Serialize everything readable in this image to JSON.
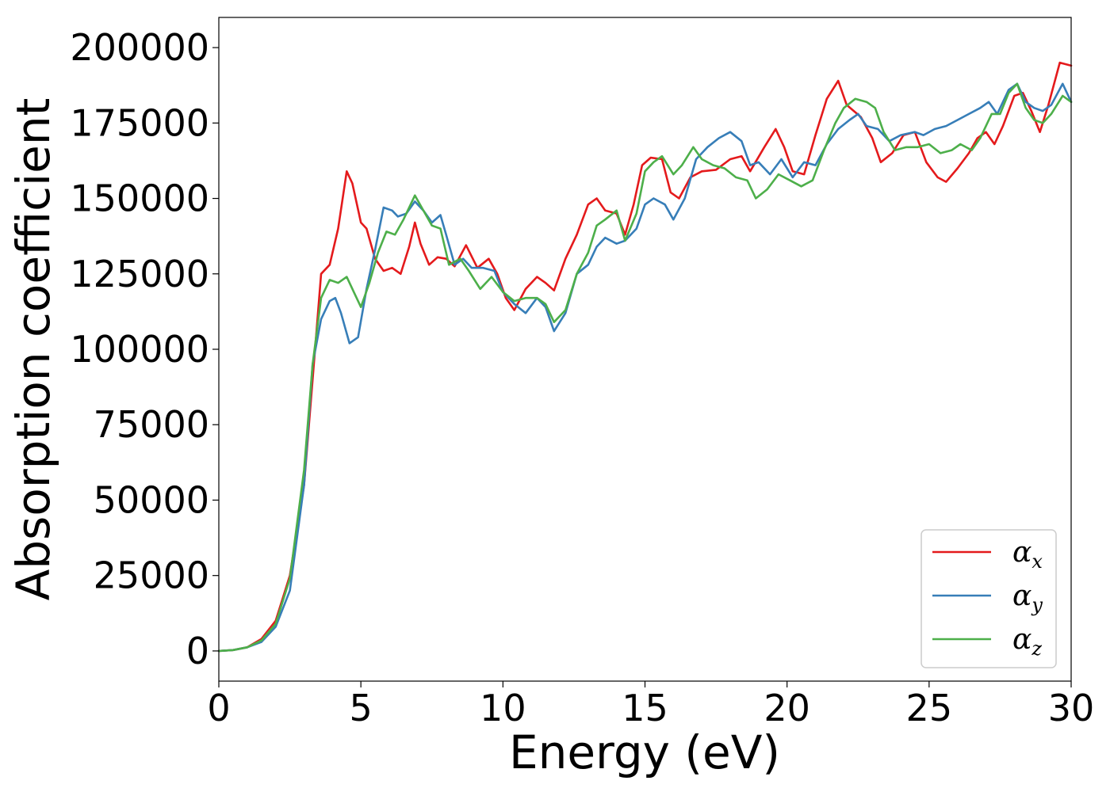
{
  "chart_data": {
    "type": "line",
    "title": "",
    "xlabel": "Energy (eV)",
    "ylabel": "Absorption coefficient",
    "xlim": [
      0,
      30
    ],
    "ylim": [
      -10000,
      210000
    ],
    "x_ticks": [
      0,
      5,
      10,
      15,
      20,
      25,
      30
    ],
    "y_ticks": [
      0,
      25000,
      50000,
      75000,
      100000,
      125000,
      150000,
      175000,
      200000
    ],
    "grid": false,
    "legend_position": "lower-right",
    "series": [
      {
        "name": "α_x",
        "label_base": "α",
        "label_sub": "x",
        "color": "#e41a1c",
        "points": [
          [
            0,
            0
          ],
          [
            0.5,
            300
          ],
          [
            1,
            1200
          ],
          [
            1.5,
            4000
          ],
          [
            2,
            10000
          ],
          [
            2.5,
            25000
          ],
          [
            3,
            55000
          ],
          [
            3.3,
            90000
          ],
          [
            3.6,
            125000
          ],
          [
            3.9,
            128000
          ],
          [
            4.2,
            140000
          ],
          [
            4.5,
            159000
          ],
          [
            4.7,
            155000
          ],
          [
            5,
            142000
          ],
          [
            5.2,
            140000
          ],
          [
            5.5,
            130000
          ],
          [
            5.8,
            126000
          ],
          [
            6.1,
            127000
          ],
          [
            6.4,
            125000
          ],
          [
            6.7,
            134000
          ],
          [
            6.9,
            142000
          ],
          [
            7.1,
            135000
          ],
          [
            7.4,
            128000
          ],
          [
            7.7,
            130500
          ],
          [
            8,
            130000
          ],
          [
            8.3,
            127500
          ],
          [
            8.7,
            134500
          ],
          [
            9.1,
            127000
          ],
          [
            9.5,
            130000
          ],
          [
            9.8,
            125000
          ],
          [
            10.1,
            117000
          ],
          [
            10.4,
            113000
          ],
          [
            10.8,
            120000
          ],
          [
            11.2,
            124000
          ],
          [
            11.5,
            122000
          ],
          [
            11.8,
            119500
          ],
          [
            12.2,
            130000
          ],
          [
            12.6,
            138000
          ],
          [
            13,
            148000
          ],
          [
            13.3,
            150000
          ],
          [
            13.6,
            146000
          ],
          [
            14,
            145000
          ],
          [
            14.3,
            138000
          ],
          [
            14.6,
            148000
          ],
          [
            14.9,
            161000
          ],
          [
            15.2,
            163500
          ],
          [
            15.6,
            163000
          ],
          [
            15.9,
            152000
          ],
          [
            16.2,
            150000
          ],
          [
            16.6,
            157000
          ],
          [
            17,
            159000
          ],
          [
            17.5,
            159500
          ],
          [
            18,
            163000
          ],
          [
            18.4,
            164000
          ],
          [
            18.7,
            159000
          ],
          [
            19.2,
            167000
          ],
          [
            19.6,
            173000
          ],
          [
            19.9,
            167000
          ],
          [
            20.2,
            159000
          ],
          [
            20.6,
            158000
          ],
          [
            21,
            171000
          ],
          [
            21.4,
            183000
          ],
          [
            21.8,
            189000
          ],
          [
            22.1,
            181000
          ],
          [
            22.6,
            177000
          ],
          [
            23,
            170000
          ],
          [
            23.3,
            162000
          ],
          [
            23.7,
            165000
          ],
          [
            24.1,
            171000
          ],
          [
            24.5,
            172000
          ],
          [
            24.9,
            162000
          ],
          [
            25.3,
            157000
          ],
          [
            25.6,
            155500
          ],
          [
            26,
            160000
          ],
          [
            26.4,
            165000
          ],
          [
            26.7,
            170000
          ],
          [
            27,
            172000
          ],
          [
            27.3,
            168000
          ],
          [
            27.6,
            174000
          ],
          [
            28,
            184000
          ],
          [
            28.3,
            185000
          ],
          [
            28.6,
            179000
          ],
          [
            28.9,
            172000
          ],
          [
            29.2,
            181000
          ],
          [
            29.6,
            195000
          ],
          [
            30,
            194000
          ]
        ]
      },
      {
        "name": "α_y",
        "label_base": "α",
        "label_sub": "y",
        "color": "#377eb8",
        "points": [
          [
            0,
            0
          ],
          [
            0.5,
            300
          ],
          [
            1,
            1200
          ],
          [
            1.5,
            3000
          ],
          [
            2,
            8000
          ],
          [
            2.5,
            20000
          ],
          [
            3,
            55000
          ],
          [
            3.3,
            95000
          ],
          [
            3.6,
            110000
          ],
          [
            3.9,
            116000
          ],
          [
            4.1,
            117000
          ],
          [
            4.3,
            112000
          ],
          [
            4.6,
            102000
          ],
          [
            4.9,
            104000
          ],
          [
            5.2,
            120000
          ],
          [
            5.5,
            133000
          ],
          [
            5.8,
            147000
          ],
          [
            6.1,
            146000
          ],
          [
            6.3,
            144000
          ],
          [
            6.6,
            145000
          ],
          [
            6.9,
            149000
          ],
          [
            7.2,
            146000
          ],
          [
            7.5,
            142000
          ],
          [
            7.8,
            144500
          ],
          [
            8,
            138000
          ],
          [
            8.3,
            128000
          ],
          [
            8.6,
            130000
          ],
          [
            8.9,
            127000
          ],
          [
            9.3,
            127000
          ],
          [
            9.7,
            126000
          ],
          [
            10,
            119000
          ],
          [
            10.4,
            115000
          ],
          [
            10.8,
            112000
          ],
          [
            11.2,
            117000
          ],
          [
            11.5,
            114000
          ],
          [
            11.8,
            106000
          ],
          [
            12.2,
            112000
          ],
          [
            12.6,
            125000
          ],
          [
            13,
            128000
          ],
          [
            13.3,
            134000
          ],
          [
            13.6,
            137000
          ],
          [
            14,
            135000
          ],
          [
            14.3,
            136000
          ],
          [
            14.7,
            140000
          ],
          [
            15,
            148000
          ],
          [
            15.3,
            150000
          ],
          [
            15.7,
            148000
          ],
          [
            16,
            143000
          ],
          [
            16.4,
            150000
          ],
          [
            16.8,
            163000
          ],
          [
            17.2,
            167000
          ],
          [
            17.6,
            170000
          ],
          [
            18,
            172000
          ],
          [
            18.4,
            169000
          ],
          [
            18.7,
            161000
          ],
          [
            19,
            162000
          ],
          [
            19.4,
            158000
          ],
          [
            19.8,
            163000
          ],
          [
            20.2,
            157000
          ],
          [
            20.6,
            162000
          ],
          [
            21,
            161000
          ],
          [
            21.4,
            168000
          ],
          [
            21.8,
            173000
          ],
          [
            22.2,
            176000
          ],
          [
            22.5,
            178000
          ],
          [
            22.8,
            174000
          ],
          [
            23.2,
            173000
          ],
          [
            23.6,
            169000
          ],
          [
            24,
            171000
          ],
          [
            24.5,
            172000
          ],
          [
            24.8,
            171000
          ],
          [
            25.2,
            173000
          ],
          [
            25.6,
            174000
          ],
          [
            26,
            176000
          ],
          [
            26.4,
            178000
          ],
          [
            26.8,
            180000
          ],
          [
            27.1,
            182000
          ],
          [
            27.4,
            178000
          ],
          [
            27.8,
            186000
          ],
          [
            28.1,
            188000
          ],
          [
            28.4,
            182000
          ],
          [
            28.7,
            180000
          ],
          [
            29,
            179000
          ],
          [
            29.3,
            181000
          ],
          [
            29.7,
            188000
          ],
          [
            30,
            182000
          ]
        ]
      },
      {
        "name": "α_z",
        "label_base": "α",
        "label_sub": "z",
        "color": "#4daf4a",
        "points": [
          [
            0,
            0
          ],
          [
            0.5,
            300
          ],
          [
            1,
            1200
          ],
          [
            1.5,
            3500
          ],
          [
            2,
            9000
          ],
          [
            2.5,
            24000
          ],
          [
            3,
            60000
          ],
          [
            3.3,
            95000
          ],
          [
            3.6,
            117000
          ],
          [
            3.9,
            123000
          ],
          [
            4.2,
            122000
          ],
          [
            4.5,
            124000
          ],
          [
            4.8,
            118000
          ],
          [
            5,
            114000
          ],
          [
            5.3,
            122000
          ],
          [
            5.6,
            132000
          ],
          [
            5.9,
            139000
          ],
          [
            6.2,
            138000
          ],
          [
            6.5,
            143000
          ],
          [
            6.9,
            151000
          ],
          [
            7.2,
            146000
          ],
          [
            7.5,
            141000
          ],
          [
            7.8,
            140000
          ],
          [
            8.1,
            128000
          ],
          [
            8.5,
            130000
          ],
          [
            8.8,
            126000
          ],
          [
            9.2,
            120000
          ],
          [
            9.6,
            124000
          ],
          [
            10,
            119000
          ],
          [
            10.4,
            116000
          ],
          [
            10.8,
            117000
          ],
          [
            11.2,
            117000
          ],
          [
            11.5,
            115000
          ],
          [
            11.8,
            109000
          ],
          [
            12.2,
            113000
          ],
          [
            12.6,
            125000
          ],
          [
            13,
            132000
          ],
          [
            13.3,
            141000
          ],
          [
            13.6,
            143000
          ],
          [
            14,
            146000
          ],
          [
            14.3,
            136000
          ],
          [
            14.7,
            145000
          ],
          [
            15,
            159000
          ],
          [
            15.3,
            162000
          ],
          [
            15.6,
            164000
          ],
          [
            16,
            158000
          ],
          [
            16.3,
            161000
          ],
          [
            16.7,
            167000
          ],
          [
            17,
            163000
          ],
          [
            17.4,
            161000
          ],
          [
            17.8,
            160000
          ],
          [
            18.2,
            157000
          ],
          [
            18.6,
            156000
          ],
          [
            18.9,
            150000
          ],
          [
            19.3,
            153000
          ],
          [
            19.7,
            158000
          ],
          [
            20.1,
            156000
          ],
          [
            20.5,
            154000
          ],
          [
            20.9,
            156000
          ],
          [
            21.3,
            166000
          ],
          [
            21.7,
            175000
          ],
          [
            22,
            180000
          ],
          [
            22.4,
            183000
          ],
          [
            22.8,
            182000
          ],
          [
            23.1,
            180000
          ],
          [
            23.4,
            172000
          ],
          [
            23.8,
            166000
          ],
          [
            24.2,
            167000
          ],
          [
            24.6,
            167000
          ],
          [
            25,
            168000
          ],
          [
            25.4,
            165000
          ],
          [
            25.8,
            166000
          ],
          [
            26.1,
            168000
          ],
          [
            26.5,
            166000
          ],
          [
            26.8,
            170000
          ],
          [
            27.2,
            178000
          ],
          [
            27.5,
            178000
          ],
          [
            27.8,
            185000
          ],
          [
            28.1,
            188000
          ],
          [
            28.4,
            180000
          ],
          [
            28.7,
            176000
          ],
          [
            29,
            175000
          ],
          [
            29.3,
            178000
          ],
          [
            29.7,
            184000
          ],
          [
            30,
            182000
          ]
        ]
      }
    ]
  }
}
